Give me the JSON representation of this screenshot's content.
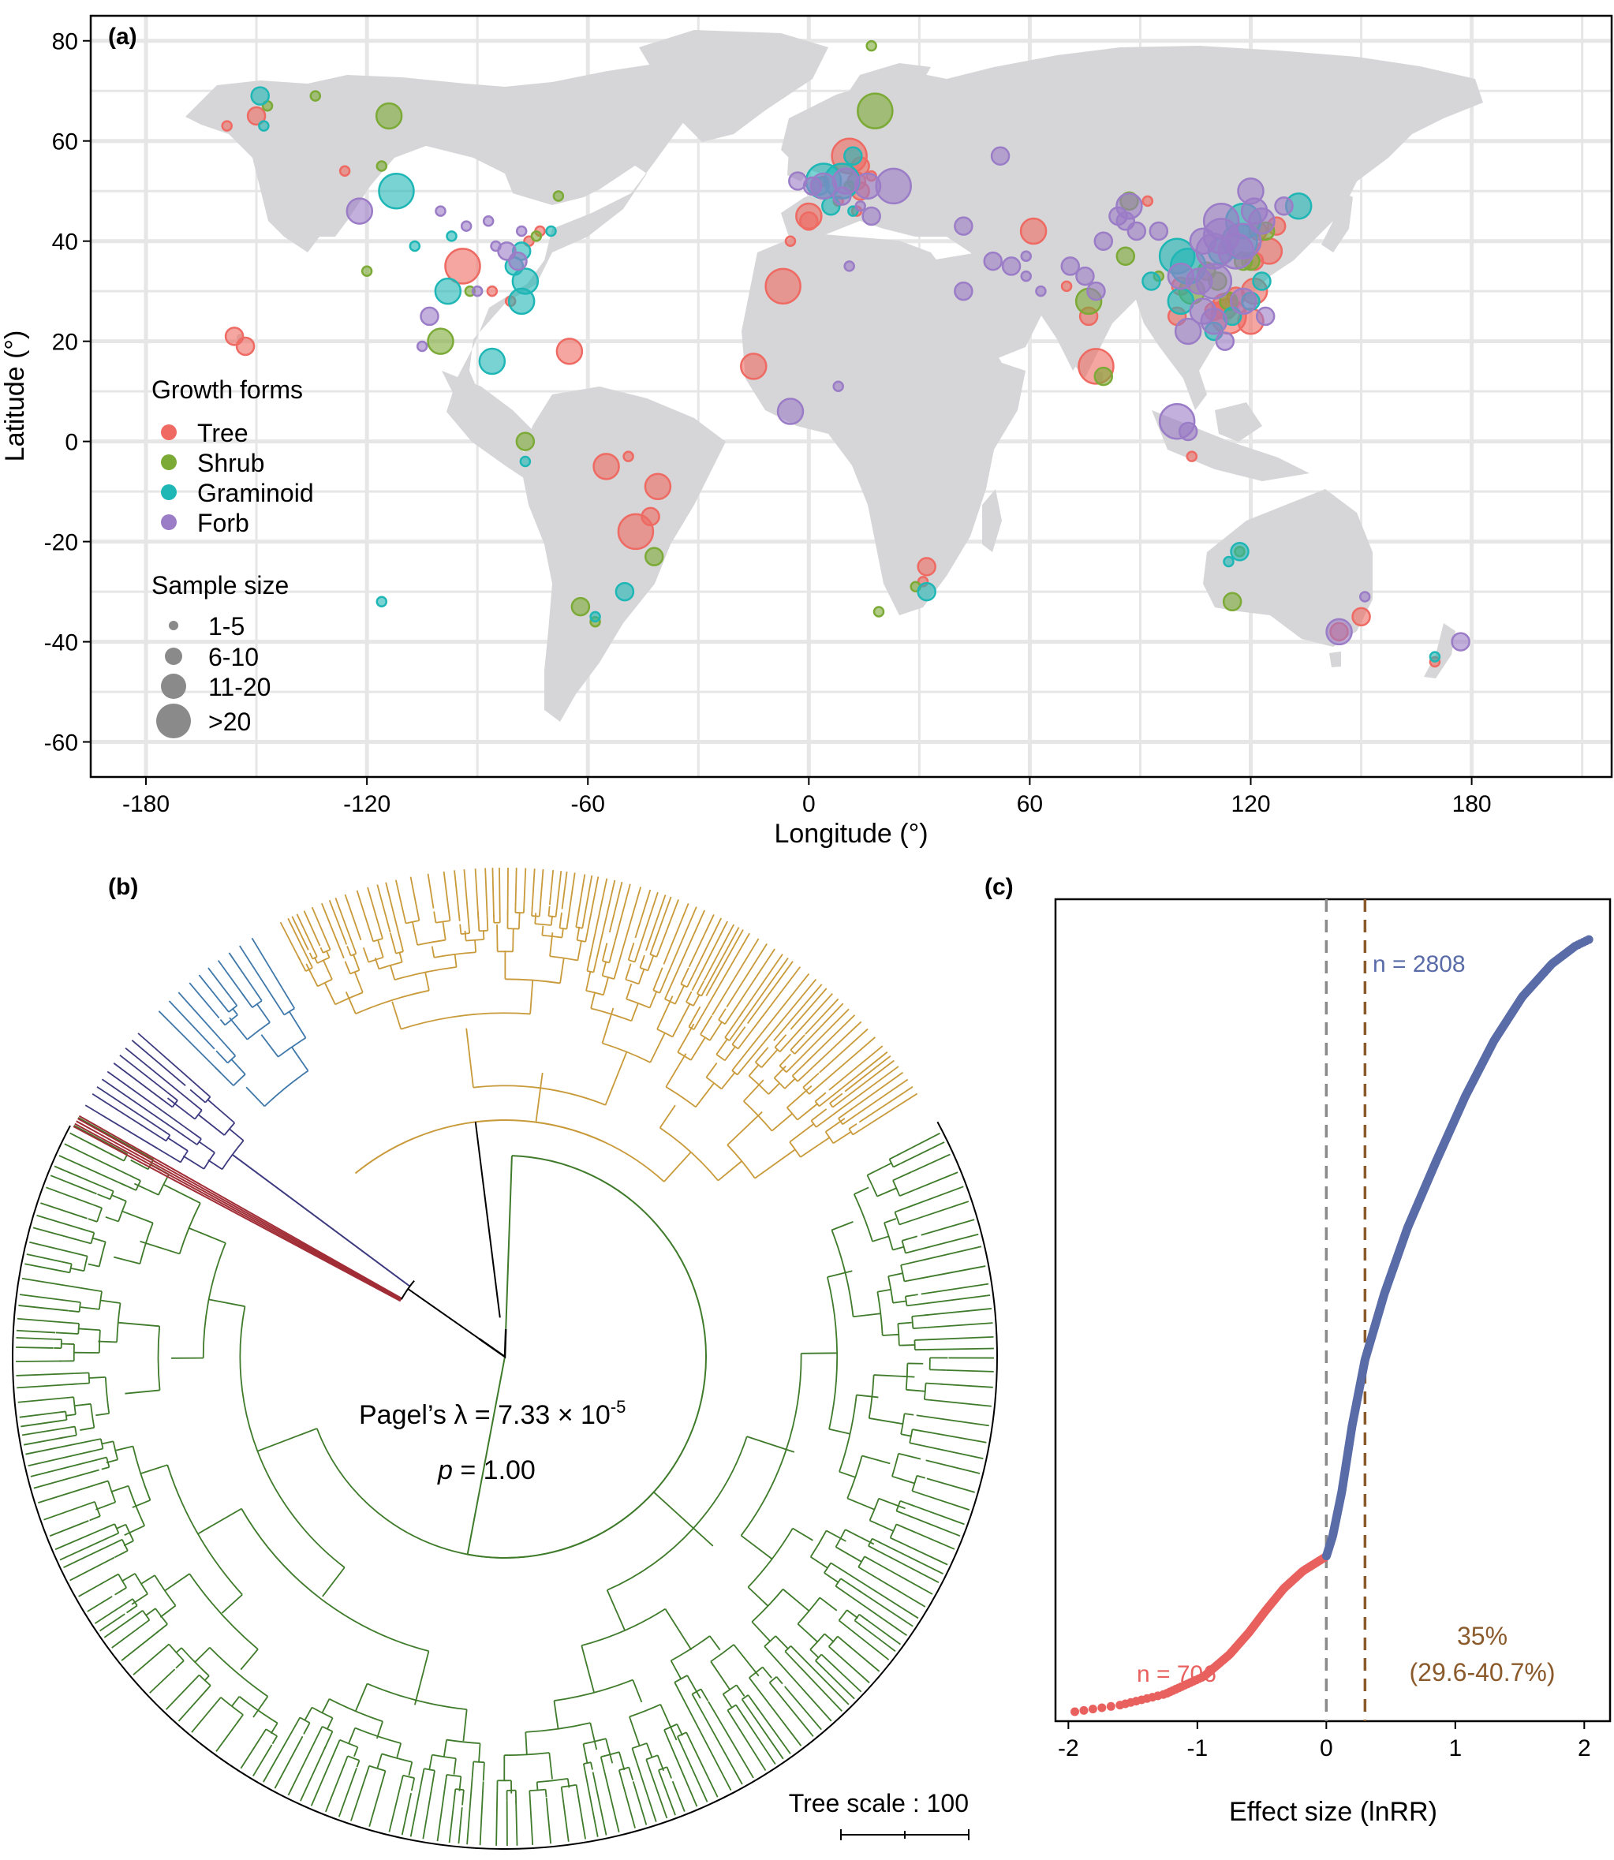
{
  "colors": {
    "tree": "#ee6a63",
    "shrub": "#7caa36",
    "graminoid": "#1fb6b6",
    "forb": "#9b7cc7",
    "land": "#d6d6d8",
    "grid": "#e6e6e6",
    "clade_gold": "#c99a3a",
    "clade_blue": "#3f78aa",
    "clade_purple": "#3d3a7f",
    "clade_red": "#a12d36",
    "clade_green": "#3f7b2b",
    "curve_pos": "#5a6ca8",
    "curve_neg": "#e8615e",
    "mean_line": "#8b5a2b",
    "zero_line": "#8a8a8a"
  },
  "panel_a": {
    "label": "(a)",
    "xlabel": "Longitude (°)",
    "ylabel": "Latitude (°)",
    "x_ticks": [
      "-180",
      "-120",
      "-60",
      "0",
      "60",
      "120",
      "180"
    ],
    "y_ticks": [
      "80",
      "60",
      "40",
      "20",
      "0",
      "-20",
      "-40",
      "-60"
    ],
    "legend_growth_title": "Growth forms",
    "legend_growth": [
      "Tree",
      "Shrub",
      "Graminoid",
      "Forb"
    ],
    "legend_size_title": "Sample size",
    "legend_sizes": [
      "1-5",
      "6-10",
      "11-20",
      ">20"
    ]
  },
  "panel_b": {
    "label": "(b)",
    "stat_prefix": "Pagel’s λ = 7.33 × 10",
    "stat_exp": "-5",
    "p_label": "p",
    "p_value": " = 1.00",
    "scale_label": "Tree scale : 100"
  },
  "panel_c": {
    "label": "(c)",
    "xlabel": "Effect size (lnRR)",
    "x_ticks": [
      "-2",
      "-1",
      "0",
      "1",
      "2"
    ],
    "n_pos": "n = 2808",
    "n_neg": "n = 706",
    "pct": "35%",
    "ci": "(29.6-40.7%)"
  },
  "chart_data": [
    {
      "type": "scatter",
      "panel": "a",
      "xlabel": "Longitude (°)",
      "ylabel": "Latitude (°)",
      "xlim": [
        -195,
        218
      ],
      "ylim": [
        -67,
        85
      ],
      "grid": true,
      "legend_position": "bottom-left",
      "size_classes": [
        "1-5",
        "6-10",
        "11-20",
        ">20"
      ],
      "series": [
        {
          "name": "Tree",
          "points": [
            [
              -158,
              63,
              1
            ],
            [
              -150,
              65,
              2
            ],
            [
              -126,
              54,
              1
            ],
            [
              -94,
              35,
              4
            ],
            [
              -86,
              30,
              1
            ],
            [
              -81,
              28,
              1
            ],
            [
              -76,
              40,
              1
            ],
            [
              -73,
              42,
              1
            ],
            [
              -65,
              18,
              3
            ],
            [
              -156,
              21,
              2
            ],
            [
              -153,
              19,
              2
            ],
            [
              -47,
              -18,
              4
            ],
            [
              -43,
              -15,
              2
            ],
            [
              -41,
              -9,
              3
            ],
            [
              -55,
              -5,
              3
            ],
            [
              -49,
              -3,
              1
            ],
            [
              -15,
              15,
              3
            ],
            [
              -7,
              31,
              4
            ],
            [
              0,
              44,
              2
            ],
            [
              0,
              45,
              3
            ],
            [
              4,
              52,
              1
            ],
            [
              8,
              48,
              1
            ],
            [
              13,
              52,
              2
            ],
            [
              13,
              46,
              1
            ],
            [
              14,
              50,
              2
            ],
            [
              17,
              53,
              1
            ],
            [
              11,
              57,
              4
            ],
            [
              14,
              55,
              2
            ],
            [
              -5,
              40,
              1
            ],
            [
              61,
              42,
              3
            ],
            [
              78,
              15,
              4
            ],
            [
              76,
              25,
              2
            ],
            [
              114,
              25,
              4
            ],
            [
              121,
              30,
              3
            ],
            [
              116,
              29,
              2
            ],
            [
              113,
              27,
              3
            ],
            [
              120,
              24,
              3
            ],
            [
              125,
              38,
              3
            ],
            [
              121,
              36,
              2
            ],
            [
              127,
              43,
              2
            ],
            [
              101,
              31,
              2
            ],
            [
              100,
              25,
              2
            ],
            [
              104,
              -3,
              1
            ],
            [
              32,
              -25,
              2
            ],
            [
              31,
              -28,
              1
            ],
            [
              144,
              -38,
              2
            ],
            [
              150,
              -35,
              2
            ],
            [
              170,
              -44,
              1
            ],
            [
              110,
              26,
              2
            ],
            [
              122,
              42,
              2
            ],
            [
              92,
              48,
              1
            ],
            [
              70,
              31,
              1
            ]
          ]
        },
        {
          "name": "Shrub",
          "points": [
            [
              -147,
              67,
              1
            ],
            [
              -134,
              69,
              1
            ],
            [
              -114,
              65,
              3
            ],
            [
              -116,
              55,
              1
            ],
            [
              -120,
              34,
              1
            ],
            [
              -100,
              20,
              3
            ],
            [
              -77,
              0,
              2
            ],
            [
              -92,
              30,
              1
            ],
            [
              -74,
              41,
              1
            ],
            [
              17,
              79,
              1
            ],
            [
              18,
              66,
              4
            ],
            [
              11,
              51,
              1
            ],
            [
              76,
              28,
              3
            ],
            [
              87,
              48,
              2
            ],
            [
              86,
              37,
              2
            ],
            [
              80,
              13,
              2
            ],
            [
              104,
              30,
              3
            ],
            [
              111,
              32,
              2
            ],
            [
              124,
              42,
              2
            ],
            [
              118,
              36,
              2
            ],
            [
              117,
              -22,
              1
            ],
            [
              115,
              -32,
              2
            ],
            [
              -58,
              -36,
              1
            ],
            [
              -42,
              -23,
              2
            ],
            [
              -62,
              -33,
              2
            ],
            [
              19,
              -34,
              1
            ],
            [
              29,
              -29,
              1
            ],
            [
              95,
              33,
              1
            ],
            [
              108,
              34,
              2
            ],
            [
              114,
              28,
              2
            ],
            [
              120,
              36,
              2
            ],
            [
              -68,
              49,
              1
            ]
          ]
        },
        {
          "name": "Graminoid",
          "points": [
            [
              -149,
              69,
              2
            ],
            [
              -148,
              63,
              1
            ],
            [
              -112,
              50,
              4
            ],
            [
              -98,
              30,
              3
            ],
            [
              -97,
              41,
              1
            ],
            [
              -107,
              39,
              1
            ],
            [
              -86,
              16,
              3
            ],
            [
              -80,
              35,
              2
            ],
            [
              -78,
              28,
              3
            ],
            [
              -77,
              32,
              3
            ],
            [
              -78,
              38,
              2
            ],
            [
              -70,
              42,
              1
            ],
            [
              -77,
              -4,
              1
            ],
            [
              -50,
              -30,
              2
            ],
            [
              -58,
              -35,
              1
            ],
            [
              12,
              57,
              2
            ],
            [
              9,
              52,
              4
            ],
            [
              4,
              52,
              4
            ],
            [
              3,
              51,
              2
            ],
            [
              6,
              47,
              2
            ],
            [
              12,
              46,
              1
            ],
            [
              32,
              -30,
              2
            ],
            [
              117,
              -22,
              2
            ],
            [
              114,
              -24,
              1
            ],
            [
              133,
              47,
              3
            ],
            [
              118,
              44,
              4
            ],
            [
              112,
              38,
              3
            ],
            [
              117,
              40,
              4
            ],
            [
              103,
              35,
              4
            ],
            [
              100,
              37,
              4
            ],
            [
              93,
              32,
              2
            ],
            [
              101,
              28,
              3
            ],
            [
              110,
              22,
              2
            ],
            [
              120,
              28,
              2
            ],
            [
              123,
              32,
              2
            ],
            [
              115,
              25,
              2
            ],
            [
              170,
              -43,
              1
            ],
            [
              -116,
              -32,
              1
            ]
          ]
        },
        {
          "name": "Forb",
          "points": [
            [
              -122,
              46,
              3
            ],
            [
              -103,
              25,
              2
            ],
            [
              -105,
              19,
              1
            ],
            [
              -100,
              46,
              1
            ],
            [
              -93,
              43,
              1
            ],
            [
              -90,
              30,
              1
            ],
            [
              -82,
              38,
              2
            ],
            [
              -79,
              36,
              2
            ],
            [
              -78,
              42,
              1
            ],
            [
              -85,
              39,
              1
            ],
            [
              -87,
              44,
              1
            ],
            [
              -5,
              6,
              3
            ],
            [
              8,
              11,
              1
            ],
            [
              -3,
              52,
              2
            ],
            [
              1,
              51,
              2
            ],
            [
              4,
              51,
              3
            ],
            [
              10,
              52,
              3
            ],
            [
              16,
              51,
              3
            ],
            [
              23,
              51,
              4
            ],
            [
              17,
              45,
              2
            ],
            [
              9,
              49,
              2
            ],
            [
              14,
              47,
              1
            ],
            [
              11,
              35,
              1
            ],
            [
              42,
              43,
              2
            ],
            [
              52,
              57,
              2
            ],
            [
              50,
              36,
              2
            ],
            [
              55,
              35,
              2
            ],
            [
              59,
              37,
              1
            ],
            [
              42,
              30,
              2
            ],
            [
              59,
              33,
              1
            ],
            [
              63,
              30,
              1
            ],
            [
              71,
              35,
              2
            ],
            [
              75,
              33,
              2
            ],
            [
              80,
              40,
              2
            ],
            [
              84,
              45,
              2
            ],
            [
              87,
              47,
              3
            ],
            [
              86,
              44,
              2
            ],
            [
              78,
              30,
              2
            ],
            [
              89,
              42,
              2
            ],
            [
              100,
              4,
              4
            ],
            [
              103,
              2,
              2
            ],
            [
              107,
              40,
              3
            ],
            [
              112,
              44,
              4
            ],
            [
              112,
              41,
              4
            ],
            [
              110,
              38,
              4
            ],
            [
              116,
              38,
              4
            ],
            [
              118,
              40,
              4
            ],
            [
              121,
              46,
              3
            ],
            [
              120,
              50,
              3
            ],
            [
              123,
              44,
              3
            ],
            [
              118,
              28,
              3
            ],
            [
              107,
              26,
              3
            ],
            [
              110,
              24,
              3
            ],
            [
              113,
              20,
              2
            ],
            [
              124,
              25,
              2
            ],
            [
              129,
              47,
              2
            ],
            [
              103,
              22,
              3
            ],
            [
              101,
              33,
              3
            ],
            [
              95,
              42,
              2
            ],
            [
              144,
              -38,
              3
            ],
            [
              151,
              -31,
              1
            ],
            [
              177,
              -40,
              2
            ],
            [
              110,
              32,
              4
            ],
            [
              106,
              32,
              3
            ]
          ]
        }
      ]
    },
    {
      "type": "tree",
      "panel": "b",
      "stat": "Pagel’s λ = 7.33 × 10-5",
      "p": "p = 1.00",
      "scale": "Tree scale : 100"
    },
    {
      "type": "scatter",
      "panel": "c",
      "xlabel": "Effect size (lnRR)",
      "xlim": [
        -2.1,
        2.2
      ],
      "x_ticks": [
        -2,
        -1,
        0,
        1,
        2
      ],
      "vlines": [
        0,
        0.3
      ],
      "n_total": 3514,
      "n_negative": 706,
      "n_positive": 2808,
      "curve": [
        [
          0,
          -1.95
        ],
        [
          30,
          -1.6
        ],
        [
          80,
          -1.25
        ],
        [
          160,
          -0.95
        ],
        [
          260,
          -0.75
        ],
        [
          360,
          -0.6
        ],
        [
          460,
          -0.47
        ],
        [
          560,
          -0.33
        ],
        [
          640,
          -0.18
        ],
        [
          706,
          0.0
        ],
        [
          800,
          0.05
        ],
        [
          1000,
          0.12
        ],
        [
          1300,
          0.2
        ],
        [
          1600,
          0.3
        ],
        [
          1900,
          0.45
        ],
        [
          2200,
          0.63
        ],
        [
          2500,
          0.85
        ],
        [
          2800,
          1.08
        ],
        [
          3050,
          1.3
        ],
        [
          3250,
          1.52
        ],
        [
          3400,
          1.75
        ],
        [
          3480,
          1.93
        ],
        [
          3514,
          2.05
        ]
      ],
      "annotations": [
        "n = 2808",
        "n = 706",
        "35%",
        "(29.6-40.7%)"
      ]
    }
  ]
}
